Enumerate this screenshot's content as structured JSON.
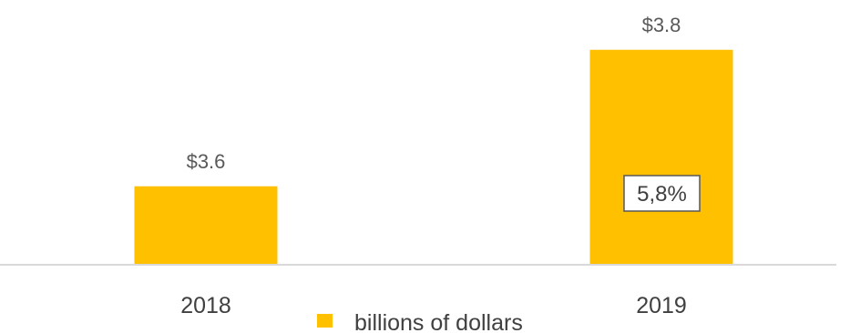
{
  "chart_data": {
    "type": "bar",
    "categories": [
      "2018",
      "2019"
    ],
    "series": [
      {
        "name": "billions of dollars",
        "values": [
          3.6,
          3.8
        ]
      }
    ],
    "data_labels": [
      "$3.6",
      "$3.8"
    ],
    "annotations": [
      {
        "category": "2019",
        "text": "5,8%"
      }
    ],
    "legend": {
      "position": "bottom",
      "label": "billions of dollars"
    },
    "grid": false,
    "colors": {
      "bar": "#FFC000",
      "axis": "#D9D9D9",
      "annotation_border": "#595959"
    }
  }
}
